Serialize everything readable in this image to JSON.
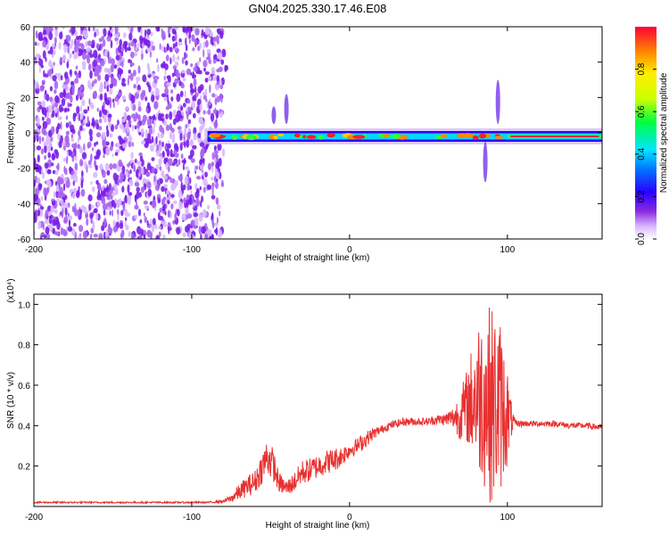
{
  "figure_title": "GN04.2025.330.17.46.E08",
  "colors": {
    "snr_line": "#e83030",
    "noise_dot": "#7a1ee8",
    "axis": "#000000"
  },
  "chart_data": [
    {
      "type": "heatmap",
      "xlabel": "Height of straight line (km)",
      "ylabel": "Frequency (Hz)",
      "xlim": [
        -200,
        160
      ],
      "ylim": [
        -60,
        60
      ],
      "x_ticks": [
        "-200",
        "-100",
        "0",
        "100"
      ],
      "x_tick_values": [
        -200,
        -100,
        0,
        100
      ],
      "y_ticks": [
        "60",
        "40",
        "20",
        "0",
        "-20",
        "-40",
        "-60"
      ],
      "y_tick_values": [
        60,
        40,
        20,
        0,
        -20,
        -40,
        -60
      ],
      "colorbar": {
        "label": "Normalized spectral amplitude",
        "range": [
          0,
          1
        ],
        "ticks": [
          "0.0",
          "0.2",
          "0.4",
          "0.6",
          "0.8"
        ],
        "tick_values": [
          0,
          0.2,
          0.4,
          0.6,
          0.8
        ]
      },
      "noise_region": {
        "x_range": [
          -200,
          -80
        ],
        "y_range": [
          -60,
          60
        ],
        "amplitude": 0.15
      },
      "signal_band": {
        "x_range": [
          -90,
          160
        ],
        "center_freq": -2,
        "amplitude_range": [
          0.1,
          1.0
        ]
      },
      "features": [
        {
          "x": -40,
          "freq_range": [
            5,
            22
          ],
          "amplitude": 0.2
        },
        {
          "x": -48,
          "freq_range": [
            5,
            15
          ],
          "amplitude": 0.2
        },
        {
          "x": 86,
          "freq_range": [
            -28,
            -5
          ],
          "amplitude": 0.25
        },
        {
          "x": 94,
          "freq_range": [
            5,
            30
          ],
          "amplitude": 0.15
        }
      ]
    },
    {
      "type": "line",
      "xlabel": "Height of straight line (km)",
      "ylabel": "SNR (10 * v/v)",
      "y_scale_note": "(x10⁴)",
      "xlim": [
        -200,
        160
      ],
      "ylim": [
        0,
        1.05
      ],
      "x_ticks": [
        "-200",
        "-100",
        "0",
        "100"
      ],
      "x_tick_values": [
        -200,
        -100,
        0,
        100
      ],
      "y_ticks": [
        "0.2",
        "0.4",
        "0.6",
        "0.8",
        "1.0"
      ],
      "y_tick_values": [
        0.2,
        0.4,
        0.6,
        0.8,
        1.0
      ],
      "series": [
        {
          "x": [
            -200,
            -180,
            -160,
            -140,
            -120,
            -100,
            -90,
            -80,
            -75,
            -70,
            -65,
            -60,
            -55,
            -52,
            -48,
            -45,
            -40,
            -35,
            -30,
            -25,
            -20,
            -15,
            -10,
            -5,
            0,
            5,
            10,
            15,
            20,
            25,
            30,
            35,
            40,
            45,
            50,
            55,
            60,
            65,
            70,
            75,
            80,
            85,
            90,
            95,
            100,
            103,
            105,
            110,
            120,
            130,
            140,
            150,
            160
          ],
          "values": [
            0.02,
            0.02,
            0.02,
            0.02,
            0.02,
            0.02,
            0.02,
            0.025,
            0.04,
            0.07,
            0.1,
            0.12,
            0.2,
            0.25,
            0.2,
            0.12,
            0.09,
            0.12,
            0.17,
            0.18,
            0.2,
            0.22,
            0.23,
            0.25,
            0.28,
            0.3,
            0.33,
            0.36,
            0.38,
            0.4,
            0.41,
            0.42,
            0.42,
            0.42,
            0.42,
            0.43,
            0.43,
            0.44,
            0.45,
            0.5,
            0.55,
            0.55,
            0.5,
            0.5,
            0.45,
            0.42,
            0.41,
            0.41,
            0.41,
            0.41,
            0.4,
            0.4,
            0.39
          ],
          "noise_amplitude": [
            0.004,
            0.004,
            0.004,
            0.004,
            0.004,
            0.004,
            0.004,
            0.006,
            0.02,
            0.04,
            0.05,
            0.06,
            0.08,
            0.1,
            0.08,
            0.05,
            0.04,
            0.05,
            0.06,
            0.06,
            0.06,
            0.06,
            0.06,
            0.05,
            0.04,
            0.04,
            0.04,
            0.03,
            0.02,
            0.02,
            0.02,
            0.02,
            0.02,
            0.02,
            0.02,
            0.025,
            0.03,
            0.05,
            0.12,
            0.2,
            0.35,
            0.45,
            0.5,
            0.45,
            0.25,
            0.06,
            0.02,
            0.015,
            0.015,
            0.015,
            0.015,
            0.015,
            0.015
          ]
        }
      ]
    }
  ]
}
